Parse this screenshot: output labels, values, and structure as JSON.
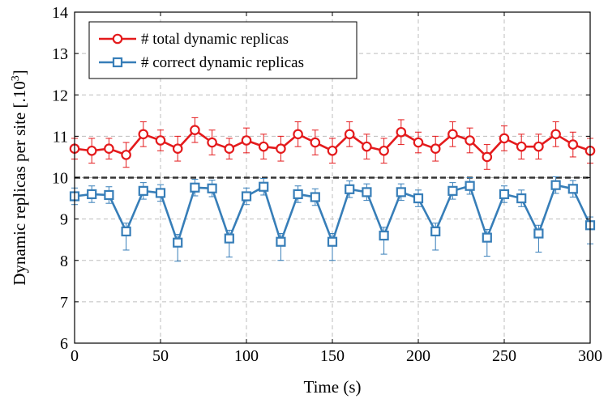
{
  "chart_data": {
    "type": "line",
    "xlabel": "Time (s)",
    "ylabel": "Dynamic replicas per site [.10",
    "ylabel_sup": "3",
    "ylabel_end": "]",
    "xlim": [
      0,
      300
    ],
    "ylim": [
      6,
      14
    ],
    "xticks": [
      0,
      50,
      100,
      150,
      200,
      250,
      300
    ],
    "yticks": [
      6,
      7,
      8,
      9,
      10,
      11,
      12,
      13,
      14
    ],
    "grid": true,
    "legend_position": "top-left",
    "reference_line": {
      "y": 10,
      "style": "dashed",
      "color": "#333333"
    },
    "x": [
      0,
      10,
      20,
      30,
      40,
      50,
      60,
      70,
      80,
      90,
      100,
      110,
      120,
      130,
      140,
      150,
      160,
      170,
      180,
      190,
      200,
      210,
      220,
      230,
      240,
      250,
      260,
      270,
      280,
      290,
      300
    ],
    "series": [
      {
        "name": "# total dynamic replicas",
        "color": "#e41a1c",
        "marker": "circle",
        "values": [
          10.7,
          10.65,
          10.7,
          10.55,
          11.05,
          10.9,
          10.7,
          11.15,
          10.85,
          10.7,
          10.9,
          10.75,
          10.7,
          11.05,
          10.85,
          10.65,
          11.05,
          10.75,
          10.65,
          11.1,
          10.85,
          10.7,
          11.05,
          10.9,
          10.5,
          10.95,
          10.75,
          10.75,
          11.05,
          10.8,
          10.65
        ],
        "errors": [
          0.25,
          0.3,
          0.25,
          0.3,
          0.3,
          0.25,
          0.3,
          0.3,
          0.3,
          0.25,
          0.3,
          0.3,
          0.3,
          0.3,
          0.3,
          0.3,
          0.3,
          0.3,
          0.3,
          0.3,
          0.25,
          0.3,
          0.3,
          0.3,
          0.3,
          0.3,
          0.3,
          0.3,
          0.3,
          0.3,
          0.3
        ]
      },
      {
        "name": "# correct dynamic replicas",
        "color": "#377eb8",
        "marker": "square",
        "values": [
          9.55,
          9.6,
          9.58,
          8.7,
          9.68,
          9.63,
          8.43,
          9.76,
          9.74,
          8.53,
          9.55,
          9.78,
          8.45,
          9.6,
          9.53,
          8.45,
          9.72,
          9.65,
          8.6,
          9.65,
          9.5,
          8.7,
          9.68,
          9.8,
          8.55,
          9.6,
          9.5,
          8.65,
          9.82,
          9.73,
          8.85
        ]
      }
    ]
  }
}
